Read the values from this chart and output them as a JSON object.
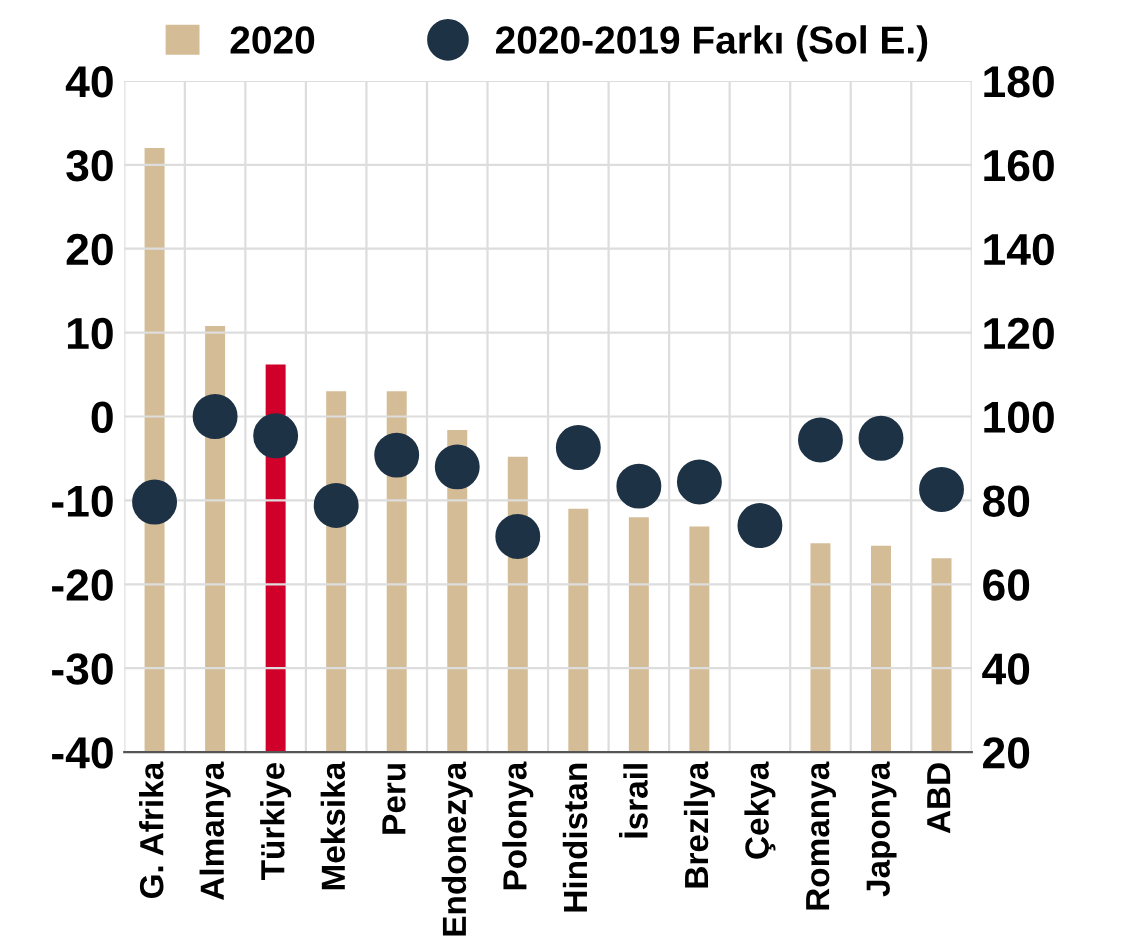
{
  "chart_data": {
    "type": "bar",
    "categories": [
      "G. Afrika",
      "Almanya",
      "Türkiye",
      "Meksika",
      "Peru",
      "Endonezya",
      "Polonya",
      "Hindistan",
      "İsrail",
      "Brezilya",
      "Çekya",
      "Romanya",
      "Japonya",
      "ABD"
    ],
    "series": [
      {
        "name": "2020",
        "axis": "y2",
        "color": "#d4bc96",
        "colors": [
          "#d4bc96",
          "#d4bc96",
          "#d0002a",
          "#d4bc96",
          "#d4bc96",
          "#d4bc96",
          "#d4bc96",
          "#d4bc96",
          "#d4bc96",
          "#d4bc96",
          "#d4bc96",
          "#d4bc96",
          "#d4bc96",
          "#d4bc96"
        ],
        "values": [
          164,
          121.6,
          112.4,
          106,
          106,
          96.8,
          90.4,
          78,
          76,
          73.8,
          null,
          69.8,
          69.2,
          66.2
        ]
      },
      {
        "name": "2020-2019 Farkı (Sol E.)",
        "type": "scatter",
        "axis": "y",
        "color": "#1e3246",
        "values": [
          -10.2,
          0,
          -2.3,
          -10.6,
          -4.6,
          -6.0,
          -14.3,
          -3.7,
          -8.3,
          -7.8,
          -13,
          -2.8,
          -2.6,
          -8.7
        ]
      }
    ],
    "ylim": [
      -40,
      40
    ],
    "yticks": [
      -40,
      -30,
      -20,
      -10,
      0,
      10,
      20,
      30,
      40
    ],
    "y2lim": [
      20,
      180
    ],
    "y2ticks": [
      20,
      40,
      60,
      80,
      100,
      120,
      140,
      160,
      180
    ],
    "grid": true,
    "legend": "top",
    "marker": "circle"
  }
}
